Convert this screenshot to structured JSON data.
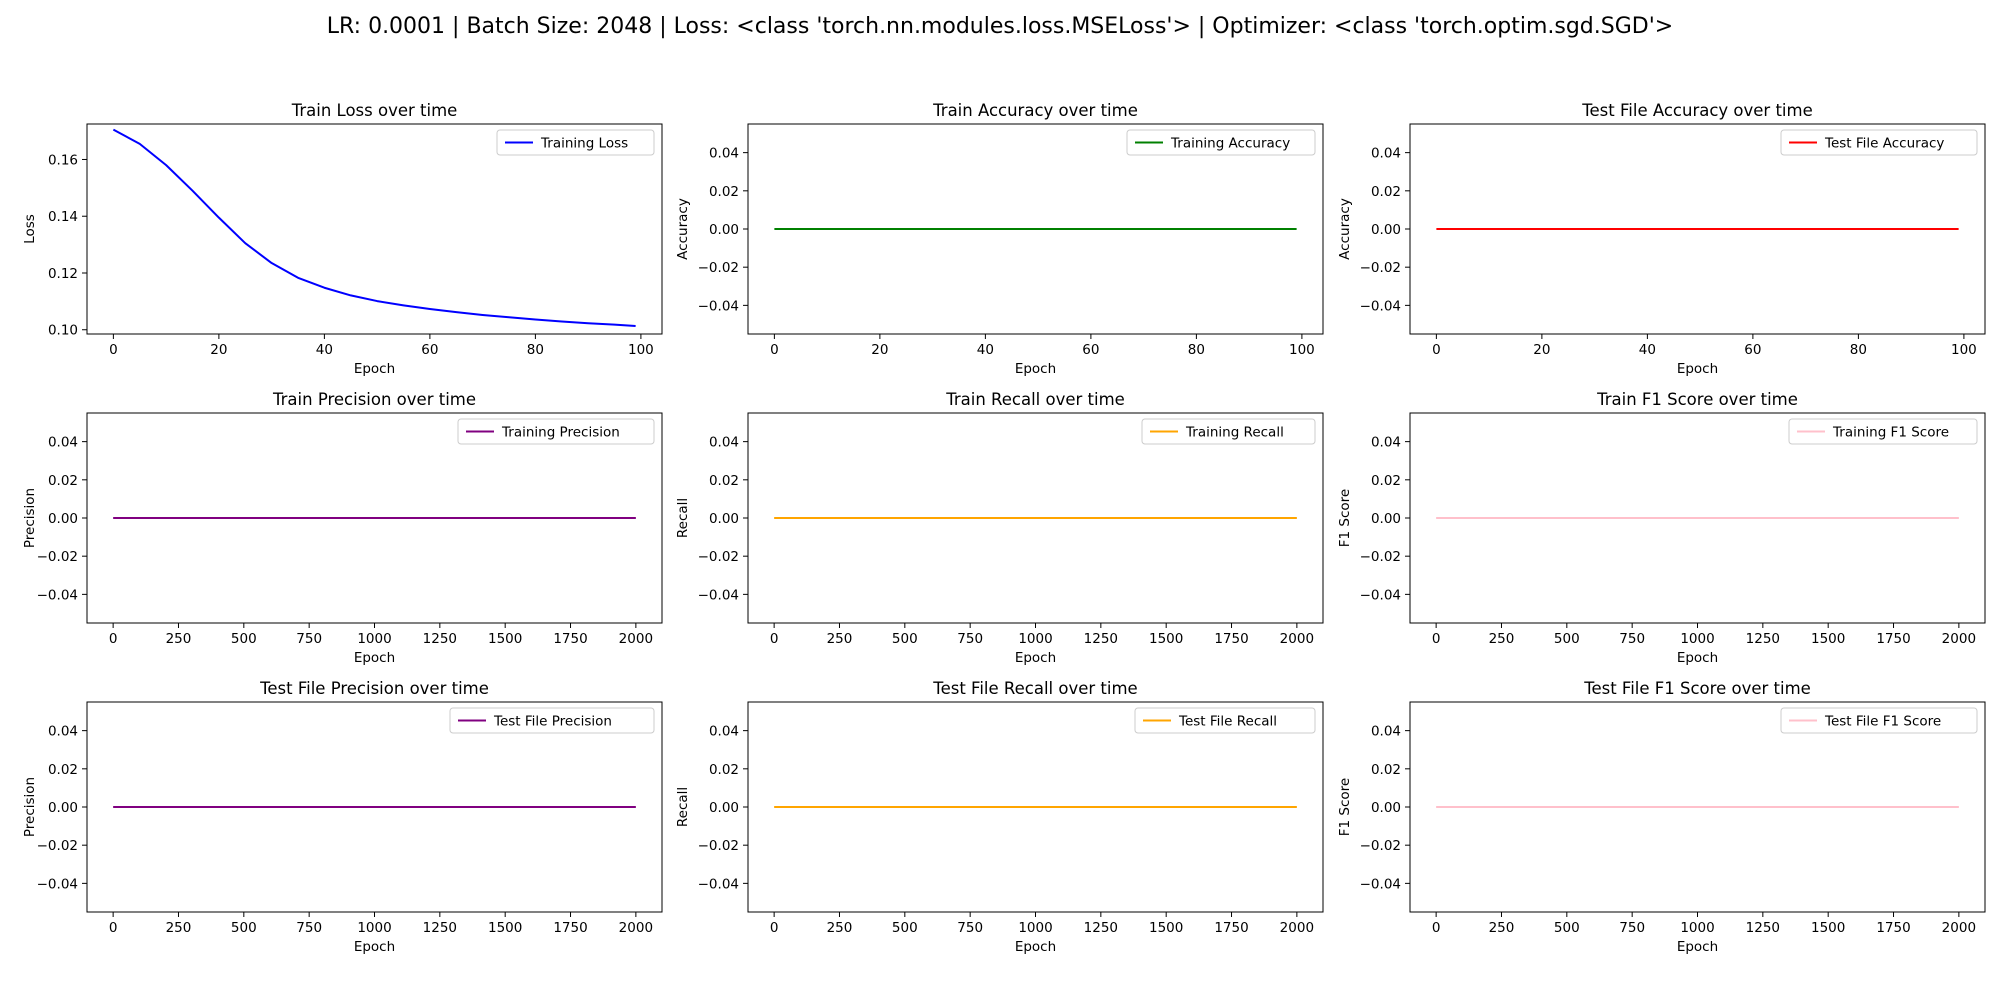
{
  "suptitle": "LR: 0.0001 | Batch Size: 2048 | Loss: <class 'torch.nn.modules.loss.MSELoss'> | Optimizer: <class 'torch.optim.sgd.SGD'>",
  "chart_data": [
    {
      "type": "line",
      "title": "Train Loss over time",
      "xlabel": "Epoch",
      "ylabel": "Loss",
      "xlim": [
        -5,
        104
      ],
      "ylim": [
        0.0985,
        0.1725
      ],
      "xticks": [
        0,
        20,
        40,
        60,
        80,
        100
      ],
      "yticks": [
        0.1,
        0.12,
        0.14,
        0.16
      ],
      "ytick_decimals": 2,
      "legend": "upper right",
      "series": [
        {
          "name": "Training Loss",
          "color": "#0000ff",
          "x": [
            0,
            5,
            10,
            15,
            20,
            25,
            30,
            35,
            40,
            45,
            50,
            55,
            60,
            65,
            70,
            75,
            80,
            85,
            90,
            95,
            99
          ],
          "y": [
            0.1705,
            0.1655,
            0.158,
            0.149,
            0.1395,
            0.1305,
            0.1235,
            0.1183,
            0.1148,
            0.1121,
            0.1101,
            0.1086,
            0.1073,
            0.1062,
            0.1052,
            0.1044,
            0.1036,
            0.1029,
            0.1023,
            0.1018,
            0.1013
          ]
        }
      ]
    },
    {
      "type": "line",
      "title": "Train Accuracy over time",
      "xlabel": "Epoch",
      "ylabel": "Accuracy",
      "xlim": [
        -5,
        104
      ],
      "ylim": [
        -0.055,
        0.055
      ],
      "xticks": [
        0,
        20,
        40,
        60,
        80,
        100
      ],
      "yticks": [
        -0.04,
        -0.02,
        0.0,
        0.02,
        0.04
      ],
      "ytick_decimals": 2,
      "legend": "upper right",
      "series": [
        {
          "name": "Training Accuracy",
          "color": "#008000",
          "x": [
            0,
            99
          ],
          "y": [
            0,
            0
          ]
        }
      ]
    },
    {
      "type": "line",
      "title": "Test File Accuracy over time",
      "xlabel": "Epoch",
      "ylabel": "Accuracy",
      "xlim": [
        -5,
        104
      ],
      "ylim": [
        -0.055,
        0.055
      ],
      "xticks": [
        0,
        20,
        40,
        60,
        80,
        100
      ],
      "yticks": [
        -0.04,
        -0.02,
        0.0,
        0.02,
        0.04
      ],
      "ytick_decimals": 2,
      "legend": "upper right",
      "series": [
        {
          "name": "Test File Accuracy",
          "color": "#ff0000",
          "x": [
            0,
            99
          ],
          "y": [
            0,
            0
          ]
        }
      ]
    },
    {
      "type": "line",
      "title": "Train Precision over time",
      "xlabel": "Epoch",
      "ylabel": "Precision",
      "xlim": [
        -100,
        2100
      ],
      "ylim": [
        -0.055,
        0.055
      ],
      "xticks": [
        0,
        250,
        500,
        750,
        1000,
        1250,
        1500,
        1750,
        2000
      ],
      "yticks": [
        -0.04,
        -0.02,
        0.0,
        0.02,
        0.04
      ],
      "ytick_decimals": 2,
      "legend": "upper right",
      "series": [
        {
          "name": "Training Precision",
          "color": "#800080",
          "x": [
            0,
            2000
          ],
          "y": [
            0,
            0
          ]
        }
      ]
    },
    {
      "type": "line",
      "title": "Train Recall over time",
      "xlabel": "Epoch",
      "ylabel": "Recall",
      "xlim": [
        -100,
        2100
      ],
      "ylim": [
        -0.055,
        0.055
      ],
      "xticks": [
        0,
        250,
        500,
        750,
        1000,
        1250,
        1500,
        1750,
        2000
      ],
      "yticks": [
        -0.04,
        -0.02,
        0.0,
        0.02,
        0.04
      ],
      "ytick_decimals": 2,
      "legend": "upper right",
      "series": [
        {
          "name": "Training Recall",
          "color": "#ffa500",
          "x": [
            0,
            2000
          ],
          "y": [
            0,
            0
          ]
        }
      ]
    },
    {
      "type": "line",
      "title": "Train F1 Score over time",
      "xlabel": "Epoch",
      "ylabel": "F1 Score",
      "xlim": [
        -100,
        2100
      ],
      "ylim": [
        -0.055,
        0.055
      ],
      "xticks": [
        0,
        250,
        500,
        750,
        1000,
        1250,
        1500,
        1750,
        2000
      ],
      "yticks": [
        -0.04,
        -0.02,
        0.0,
        0.02,
        0.04
      ],
      "ytick_decimals": 2,
      "legend": "upper right",
      "series": [
        {
          "name": "Training F1 Score",
          "color": "#ffc0cb",
          "x": [
            0,
            2000
          ],
          "y": [
            0,
            0
          ]
        }
      ]
    },
    {
      "type": "line",
      "title": "Test File Precision over time",
      "xlabel": "Epoch",
      "ylabel": "Precision",
      "xlim": [
        -100,
        2100
      ],
      "ylim": [
        -0.055,
        0.055
      ],
      "xticks": [
        0,
        250,
        500,
        750,
        1000,
        1250,
        1500,
        1750,
        2000
      ],
      "yticks": [
        -0.04,
        -0.02,
        0.0,
        0.02,
        0.04
      ],
      "ytick_decimals": 2,
      "legend": "upper right",
      "series": [
        {
          "name": "Test File Precision",
          "color": "#800080",
          "x": [
            0,
            2000
          ],
          "y": [
            0,
            0
          ]
        }
      ]
    },
    {
      "type": "line",
      "title": "Test File Recall over time",
      "xlabel": "Epoch",
      "ylabel": "Recall",
      "xlim": [
        -100,
        2100
      ],
      "ylim": [
        -0.055,
        0.055
      ],
      "xticks": [
        0,
        250,
        500,
        750,
        1000,
        1250,
        1500,
        1750,
        2000
      ],
      "yticks": [
        -0.04,
        -0.02,
        0.0,
        0.02,
        0.04
      ],
      "ytick_decimals": 2,
      "legend": "upper right",
      "series": [
        {
          "name": "Test File Recall",
          "color": "#ffa500",
          "x": [
            0,
            2000
          ],
          "y": [
            0,
            0
          ]
        }
      ]
    },
    {
      "type": "line",
      "title": "Test File F1 Score over time",
      "xlabel": "Epoch",
      "ylabel": "F1 Score",
      "xlim": [
        -100,
        2100
      ],
      "ylim": [
        -0.055,
        0.055
      ],
      "xticks": [
        0,
        250,
        500,
        750,
        1000,
        1250,
        1500,
        1750,
        2000
      ],
      "yticks": [
        -0.04,
        -0.02,
        0.0,
        0.02,
        0.04
      ],
      "ytick_decimals": 2,
      "legend": "upper right",
      "series": [
        {
          "name": "Test File F1 Score",
          "color": "#ffc0cb",
          "x": [
            0,
            2000
          ],
          "y": [
            0,
            0
          ]
        }
      ]
    }
  ]
}
